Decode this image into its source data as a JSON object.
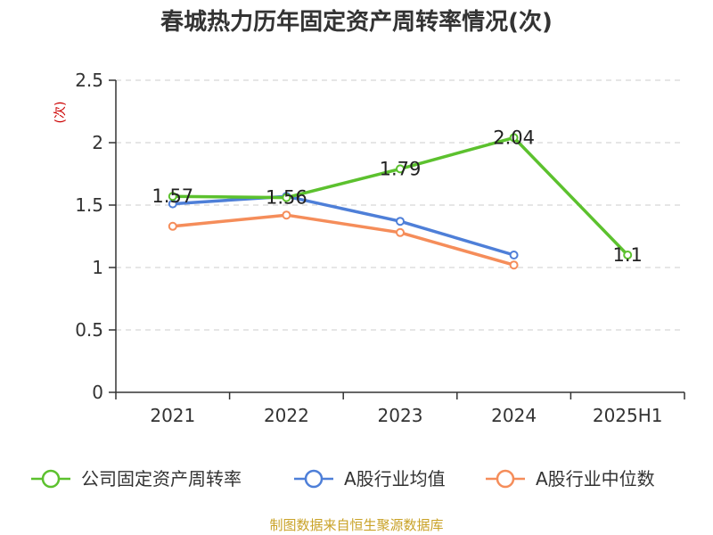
{
  "chart_data": {
    "type": "line",
    "title": "春城热力历年固定资产周转率情况(次)",
    "ylabel": "(次)",
    "xlabel": "",
    "ylim": [
      0,
      2.5
    ],
    "yticks": [
      "0",
      "0.5",
      "1",
      "1.5",
      "2",
      "2.5"
    ],
    "ytick_values": [
      0,
      0.5,
      1,
      1.5,
      2,
      2.5
    ],
    "categories": [
      "2021",
      "2022",
      "2023",
      "2024",
      "2025H1"
    ],
    "series": [
      {
        "name": "公司固定资产周转率",
        "color": "#5cc12e",
        "values": [
          1.57,
          1.56,
          1.79,
          2.04,
          1.1
        ],
        "labels": [
          "1.57",
          "1.56",
          "1.79",
          "2.04",
          "1.1"
        ]
      },
      {
        "name": "A股行业均值",
        "color": "#4e7fd8",
        "values": [
          1.51,
          1.57,
          1.37,
          1.1,
          null
        ]
      },
      {
        "name": "A股行业中位数",
        "color": "#f58d5a",
        "values": [
          1.33,
          1.42,
          1.28,
          1.02,
          null
        ]
      }
    ],
    "legend_position": "bottom",
    "grid": true
  },
  "colors": {
    "ylabel": "#cc0000",
    "source": "#c9a227",
    "axis": "#333333"
  },
  "source": "制图数据来自恒生聚源数据库"
}
